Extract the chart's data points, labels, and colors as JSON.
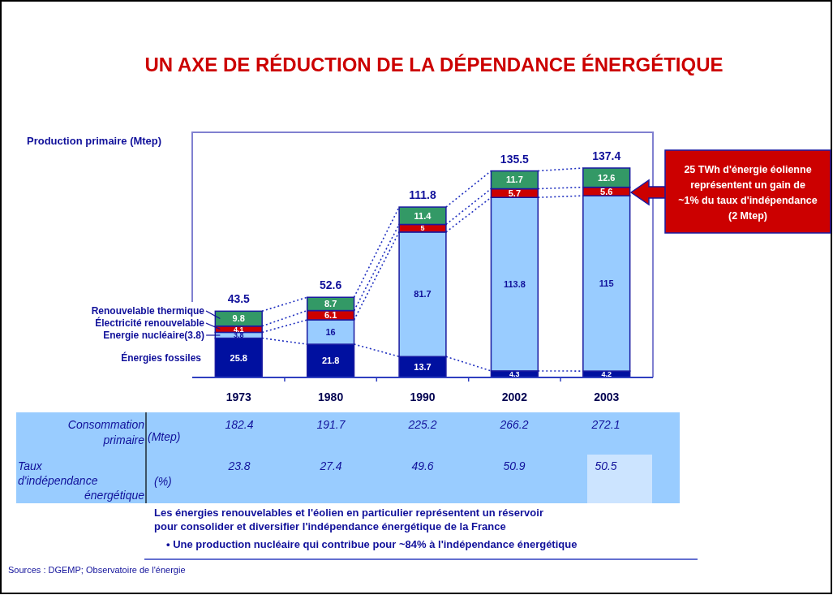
{
  "chart_data": {
    "type": "bar",
    "stacked": true,
    "title": "UN AXE DE RÉDUCTION DE LA DÉPENDANCE ÉNERGÉTIQUE",
    "ylabel": "Production primaire (Mtep)",
    "categories": [
      "1973",
      "1980",
      "1990",
      "2002",
      "2003"
    ],
    "series": [
      {
        "name": "Énergies fossiles",
        "color": "#0010a0",
        "values": [
          25.8,
          21.8,
          13.7,
          4.3,
          4.2
        ]
      },
      {
        "name": "Energie nucléaire(3.8)",
        "color": "#99ccff",
        "values": [
          3.8,
          16,
          81.7,
          113.8,
          115
        ]
      },
      {
        "name": "Électricité renouvelable",
        "color": "#cc0000",
        "values": [
          4.1,
          6.1,
          5,
          5.7,
          5.6
        ]
      },
      {
        "name": "Renouvelable thermique",
        "color": "#339966",
        "values": [
          9.8,
          8.7,
          11.4,
          11.7,
          12.6
        ]
      }
    ],
    "data_labels": true,
    "totals": [
      "43.5",
      "52.6",
      "111.8",
      "135.5",
      "137.4"
    ],
    "legend": "left",
    "annotations": [
      "Consommation primaire",
      "(Mtep)",
      "182.4",
      "191.7",
      "225.2",
      "266.2",
      "272.1",
      "Taux d'indépendance énergétique",
      "(%)",
      "23.8",
      "27.4",
      "49.6",
      "50.9",
      "50.5",
      "25 TWh d'énergie éolienne représentent un gain de ~1% du taux d'indépendance (2 Mtep)",
      "Les énergies renouvelables et l'éolien en particulier représentent un réservoir pour consolider et diversifier l'indépendance énergétique de la France",
      "• Une production nucléaire qui contribue pour ~84% à l'indépendance énergétique",
      "Sources : DGEMP; Observatoire de l'énergie"
    ]
  }
}
